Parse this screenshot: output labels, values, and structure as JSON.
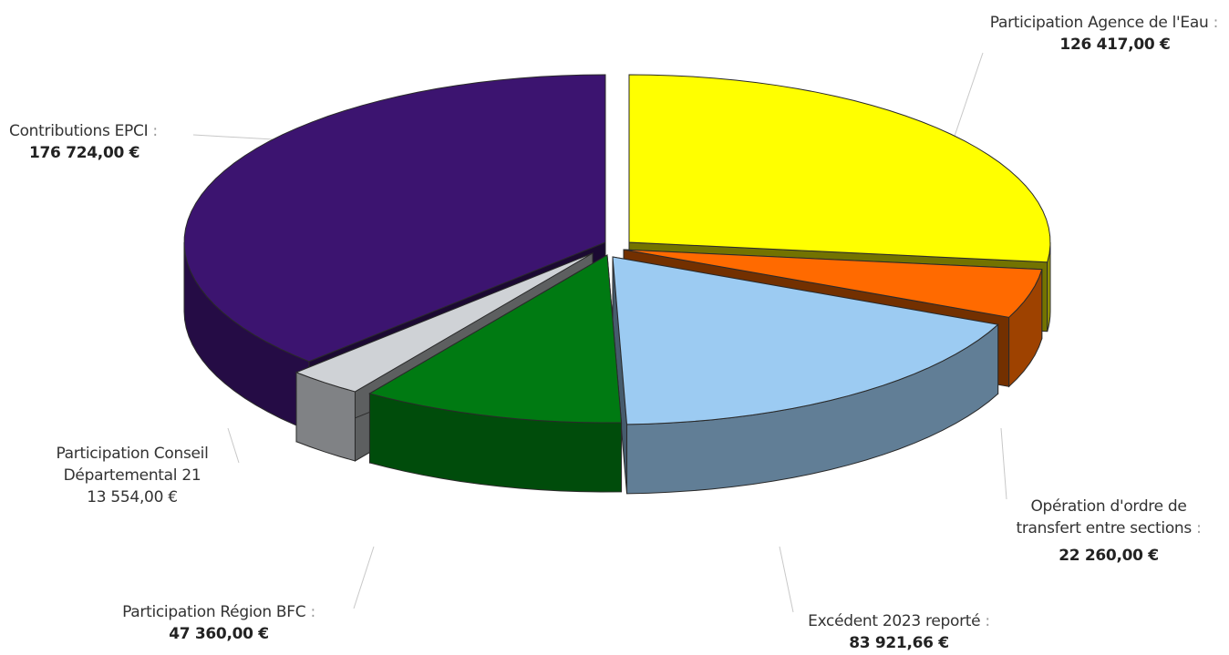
{
  "chart_data": {
    "type": "pie",
    "slices": [
      {
        "label": "Participation Agence de l'Eau",
        "value": 126417.0,
        "display": "126 417,00 €",
        "color": "#ffff00",
        "bold": true
      },
      {
        "label": "Opération d'ordre de transfert entre sections",
        "value": 22260.0,
        "display": "22 260,00 €",
        "color": "#ff6a00",
        "bold": true
      },
      {
        "label": "Excédent 2023 reporté",
        "value": 83921.66,
        "display": "83 921,66 €",
        "color": "#9ccbf2",
        "bold": true
      },
      {
        "label": "Participation Région BFC",
        "value": 47360.0,
        "display": "47 360,00 €",
        "color": "#007a12",
        "bold": true
      },
      {
        "label": "Participation Conseil Départemental 21",
        "value": 13554.0,
        "display": "13 554,00 €",
        "color": "#cfd2d6",
        "bold": false
      },
      {
        "label": "Contributions EPCI",
        "value": 176724.0,
        "display": "176 724,00 €",
        "color": "#3c1470",
        "bold": true
      }
    ]
  },
  "labels": {
    "agence": {
      "line1": "Participation Agence de l'Eau",
      "colon": ":",
      "amount": "126 417,00 €"
    },
    "operation": {
      "line1": "Opération d'ordre de",
      "line2": "transfert entre sections",
      "colon": ":",
      "amount": "22 260,00 €"
    },
    "excedent": {
      "line1": "Excédent 2023 reporté",
      "colon": ":",
      "amount": "83 921,66 €"
    },
    "region": {
      "line1": "Participation Région BFC",
      "colon": ":",
      "amount": "47 360,00 €"
    },
    "conseil": {
      "line1": "Participation Conseil",
      "line2": "Départemental 21",
      "amount": "13 554,00 €"
    },
    "epci": {
      "line1": "Contributions EPCI",
      "colon": ":",
      "amount": "176 724,00 €"
    }
  }
}
